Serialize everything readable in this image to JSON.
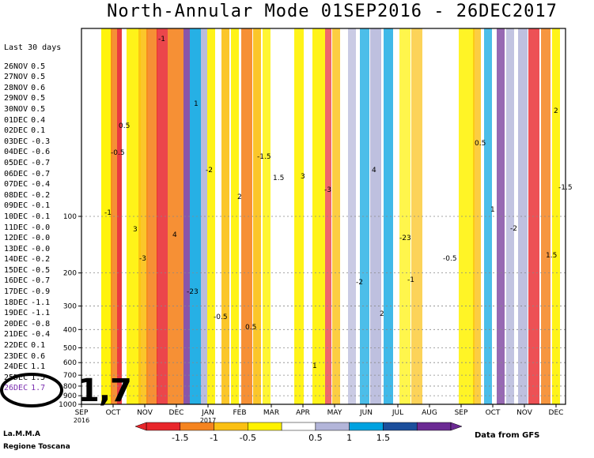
{
  "chart_data": {
    "type": "heatmap",
    "title": "North-Annular Mode 01SEP2016 - 26DEC2017",
    "x_axis": {
      "tick_labels": [
        "SEP",
        "OCT",
        "NOV",
        "DEC",
        "JAN",
        "FEB",
        "MAR",
        "APR",
        "MAY",
        "JUN",
        "JUL",
        "AUG",
        "SEP",
        "OCT",
        "NOV",
        "DEC"
      ],
      "year_labels": [
        "2016",
        "2017"
      ]
    },
    "y_axis": {
      "tick_labels": [
        "100",
        "200",
        "300",
        "400",
        "500",
        "600",
        "700",
        "800",
        "900",
        "1000"
      ],
      "scale": "log"
    },
    "colorbar": {
      "tick_labels": [
        "-1.5",
        "-1",
        "-0.5",
        "0.5",
        "1",
        "1.5"
      ],
      "colors": [
        "#e8262b",
        "#f5841f",
        "#fbc013",
        "#fff200",
        "#ffffff",
        "#b3b5d9",
        "#00a2e0",
        "#1c4f9c",
        "#6b2a93"
      ]
    },
    "contour_labels": [
      "-1",
      "-0.5",
      "0.5",
      "1",
      "-2",
      "2",
      "-1.5",
      "1.5",
      "3",
      "-3",
      "4",
      "-23"
    ],
    "last_30_days": {
      "header": "Last 30 days",
      "rows": [
        {
          "date": "26NOV",
          "value": "0.5"
        },
        {
          "date": "27NOV",
          "value": "0.5"
        },
        {
          "date": "28NOV",
          "value": "0.6"
        },
        {
          "date": "29NOV",
          "value": "0.5"
        },
        {
          "date": "30NOV",
          "value": "0.5"
        },
        {
          "date": "01DEC",
          "value": "0.4"
        },
        {
          "date": "02DEC",
          "value": "0.1"
        },
        {
          "date": "03DEC",
          "value": "-0.3"
        },
        {
          "date": "04DEC",
          "value": "-0.6"
        },
        {
          "date": "05DEC",
          "value": "-0.7"
        },
        {
          "date": "06DEC",
          "value": "-0.7"
        },
        {
          "date": "07DEC",
          "value": "-0.4"
        },
        {
          "date": "08DEC",
          "value": "-0.2"
        },
        {
          "date": "09DEC",
          "value": "-0.1"
        },
        {
          "date": "10DEC",
          "value": "-0.1"
        },
        {
          "date": "11DEC",
          "value": "-0.0"
        },
        {
          "date": "12DEC",
          "value": "-0.0"
        },
        {
          "date": "13DEC",
          "value": "-0.0"
        },
        {
          "date": "14DEC",
          "value": "-0.2"
        },
        {
          "date": "15DEC",
          "value": "-0.5"
        },
        {
          "date": "16DEC",
          "value": "-0.7"
        },
        {
          "date": "17DEC",
          "value": "-0.9"
        },
        {
          "date": "18DEC",
          "value": "-1.1"
        },
        {
          "date": "19DEC",
          "value": "-1.1"
        },
        {
          "date": "20DEC",
          "value": "-0.8"
        },
        {
          "date": "21DEC",
          "value": "-0.4"
        },
        {
          "date": "22DEC",
          "value": "0.1"
        },
        {
          "date": "23DEC",
          "value": "0.6"
        },
        {
          "date": "24DEC",
          "value": "1.1"
        },
        {
          "date": "25DEC",
          "value": "1.5"
        },
        {
          "date": "26DEC",
          "value": "1.7"
        }
      ]
    },
    "highlight_value": "1,7"
  },
  "footer": {
    "org_line1": "La.M.M.A",
    "org_line2": "Regione Toscana",
    "source": "Data from GFS"
  }
}
